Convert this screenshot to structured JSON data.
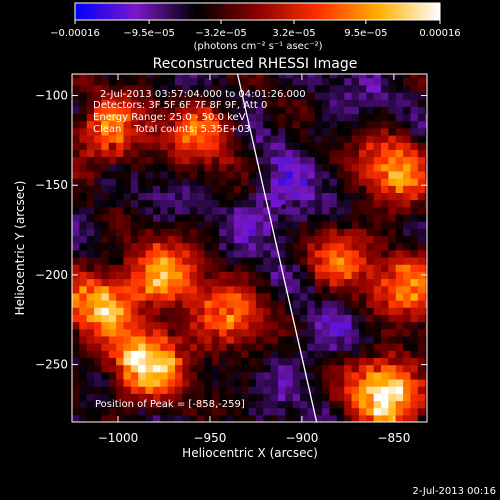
{
  "chart_data": {
    "type": "heatmap",
    "title": "Reconstructed RHESSI Image",
    "xlabel": "Heliocentric X (arcsec)",
    "ylabel": "Heliocentric Y (arcsec)",
    "xlim": [
      -1025,
      -832
    ],
    "ylim": [
      -282,
      -88
    ],
    "x_ticks": [
      -1000,
      -950,
      -900,
      -850
    ],
    "y_ticks": [
      -100,
      -150,
      -200,
      -250
    ],
    "x_tick_labels": [
      "−1000",
      "−950",
      "−900",
      "−850"
    ],
    "y_tick_labels": [
      "−100",
      "−150",
      "−200",
      "−250"
    ],
    "colorbar": {
      "range": [
        -0.00016,
        0.00016
      ],
      "ticks": [
        -0.00016,
        -9.5e-05,
        -3.2e-05,
        3.2e-05,
        9.5e-05,
        0.00016
      ],
      "tick_labels": [
        "−0.00016",
        "−9.5e−05",
        "−3.2e−05",
        "3.2e−05",
        "9.5e−05",
        "0.00016"
      ],
      "units_label": "(photons cm⁻² s⁻¹ asec⁻²)",
      "colors": [
        "#0000ff",
        "#7a18c8",
        "#000000",
        "#8b0000",
        "#ff3000",
        "#ffb000",
        "#ffffff"
      ]
    },
    "annotations": {
      "time_range": "2-Jul-2013 03:57:04.000 to 04:01:26.000",
      "detectors": "Detectors: 3F 5F 6F 7F 8F 9F, Att 0",
      "energy_range": "Energy Range: 25.0 - 50.0 keV",
      "clean_info": "Clean    Total counts: 5.35E+03",
      "peak_position": "Position of Peak = [-858,-259]"
    },
    "limb_line": [
      [
        -935,
        -88
      ],
      [
        -892,
        -282
      ]
    ],
    "peak": [
      -858,
      -259
    ],
    "hot_spots": [
      {
        "x": -855,
        "y": -265,
        "value": 0.00016
      },
      {
        "x": -985,
        "y": -250,
        "value": 0.00014
      },
      {
        "x": -1010,
        "y": -215,
        "value": 0.0001
      },
      {
        "x": -975,
        "y": -200,
        "value": 9e-05
      },
      {
        "x": -1005,
        "y": -120,
        "value": 8e-05
      },
      {
        "x": -850,
        "y": -140,
        "value": 9e-05
      },
      {
        "x": -840,
        "y": -205,
        "value": 8e-05
      },
      {
        "x": -940,
        "y": -225,
        "value": 7e-05
      },
      {
        "x": -955,
        "y": -120,
        "value": 6e-05
      },
      {
        "x": -880,
        "y": -190,
        "value": 5e-05
      }
    ],
    "cold_spots": [
      {
        "x": -910,
        "y": -162,
        "value": -0.00012
      },
      {
        "x": -890,
        "y": -240,
        "value": -9e-05
      },
      {
        "x": -1000,
        "y": -160,
        "value": -7e-05
      },
      {
        "x": -870,
        "y": -110,
        "value": -7e-05
      },
      {
        "x": -945,
        "y": -270,
        "value": -6e-05
      }
    ]
  },
  "footer": {
    "timestamp": "2-Jul-2013 00:16"
  }
}
